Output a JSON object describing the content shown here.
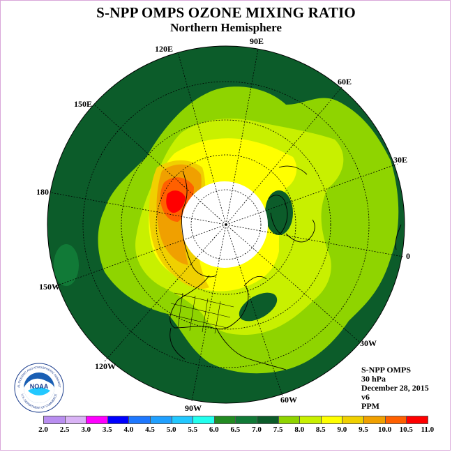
{
  "header": {
    "title": "S-NPP OMPS OZONE MIXING RATIO",
    "subtitle": "Northern Hemisphere"
  },
  "longitude_labels": {
    "e90": "90E",
    "e60": "60E",
    "e30": "30E",
    "zero": "0",
    "w30": "30W",
    "w60": "60W",
    "w90": "90W",
    "w120": "120W",
    "w150": "150W",
    "d180": "180",
    "e150": "150E",
    "e120": "120E"
  },
  "info": {
    "instrument": "S-NPP OMPS",
    "pressure": "30 hPa",
    "date": "December 28, 2015",
    "version": "v6",
    "units": "PPM"
  },
  "logo": {
    "name": "NOAA",
    "ring_text": "NATIONAL OCEANIC AND ATMOSPHERIC ADMINISTRATION",
    "bottom_text": "U.S. DEPARTMENT OF COMMERCE"
  },
  "colorbar": {
    "ticks": [
      "2.0",
      "2.5",
      "3.0",
      "3.5",
      "4.0",
      "4.5",
      "5.0",
      "5.5",
      "6.0",
      "6.5",
      "7.0",
      "7.5",
      "8.0",
      "8.5",
      "9.0",
      "9.5",
      "10.0",
      "10.5",
      "11.0"
    ],
    "colors": [
      "#b98ef0",
      "#d9b3f5",
      "#ff00ff",
      "#0000ff",
      "#1e78ff",
      "#20a0ff",
      "#22c8ff",
      "#22ffee",
      "#228b22",
      "#117a37",
      "#0c5c2a",
      "#8fd400",
      "#c8f000",
      "#ffff00",
      "#f0d000",
      "#f0a000",
      "#ff6000",
      "#ff0000",
      "#8b4513"
    ]
  },
  "map_colors": {
    "background": "#0c5c2a",
    "green_mid": "#117a37",
    "lime": "#8fd400",
    "yellow_green": "#c8f000",
    "yellow": "#ffff00",
    "gold": "#f0d000",
    "orange": "#f0a000",
    "orange_red": "#ff6000",
    "red": "#ff0000"
  }
}
